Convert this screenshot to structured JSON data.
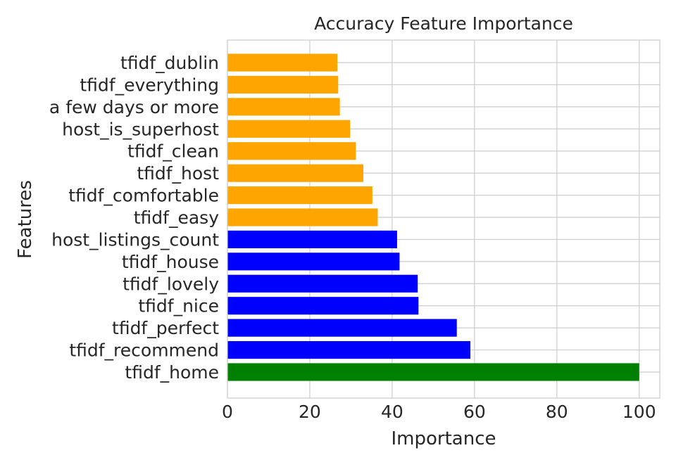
{
  "chart_data": {
    "type": "bar",
    "orientation": "horizontal",
    "title": "Accuracy Feature Importance",
    "xlabel": "Importance",
    "ylabel": "Features",
    "xlim": [
      0,
      105
    ],
    "xticks": [
      0,
      20,
      40,
      60,
      80,
      100
    ],
    "grid": true,
    "categories": [
      "tfidf_home",
      "tfidf_recommend",
      "tfidf_perfect",
      "tfidf_nice",
      "tfidf_lovely",
      "tfidf_house",
      "host_listings_count",
      "tfidf_easy",
      "tfidf_comfortable",
      "tfidf_host",
      "tfidf_clean",
      "host_is_superhost",
      "a few days or more",
      "tfidf_everything",
      "tfidf_dublin"
    ],
    "values": [
      100,
      59,
      55.7,
      46.4,
      46.2,
      41.8,
      41.2,
      36.5,
      35.2,
      33.0,
      31.2,
      29.8,
      27.3,
      26.9,
      26.7
    ],
    "colors": [
      "#008000",
      "#0000ff",
      "#0000ff",
      "#0000ff",
      "#0000ff",
      "#0000ff",
      "#0000ff",
      "#ffa500",
      "#ffa500",
      "#ffa500",
      "#ffa500",
      "#ffa500",
      "#ffa500",
      "#ffa500",
      "#ffa500"
    ]
  }
}
